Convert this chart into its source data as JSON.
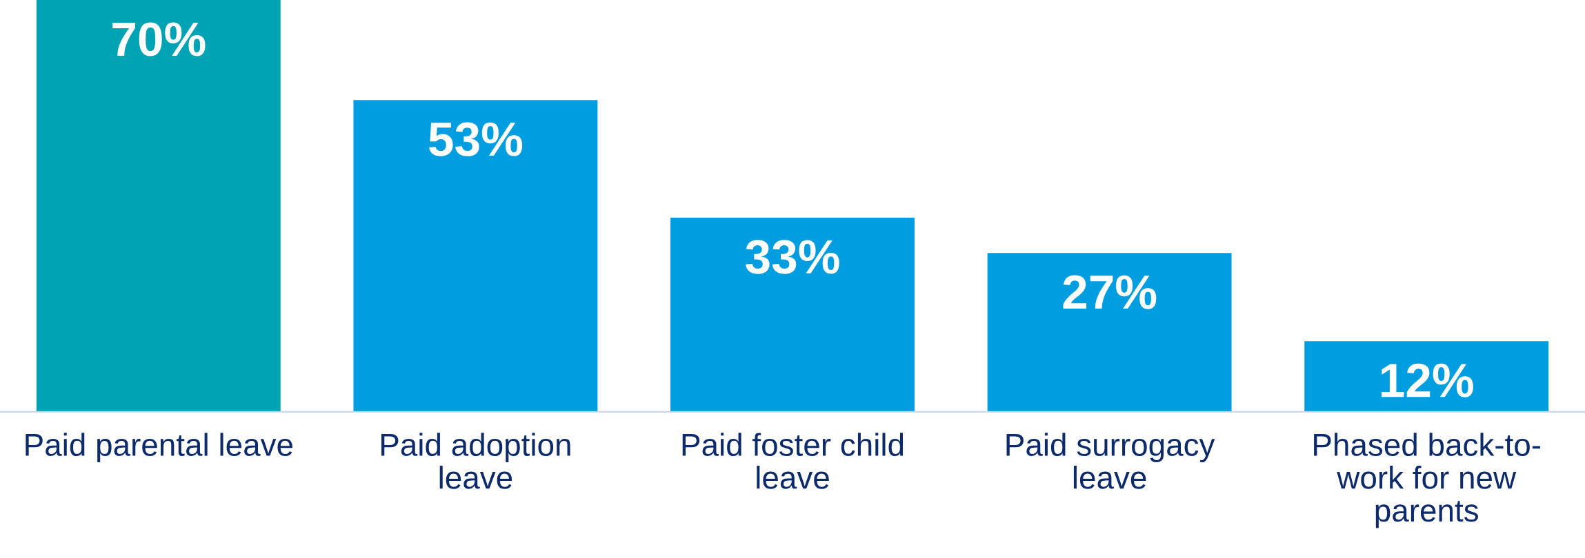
{
  "chart_data": {
    "type": "bar",
    "categories": [
      "Paid parental leave",
      "Paid adoption\nleave",
      "Paid foster child\nleave",
      "Paid surrogacy\nleave",
      "Phased back-to-\nwork for new\nparents"
    ],
    "values": [
      70,
      53,
      33,
      27,
      12
    ],
    "colors": [
      "#00a3b4",
      "#009ee0",
      "#009ee0",
      "#009ee0",
      "#009ee0"
    ],
    "value_labels": [
      "70%",
      "53%",
      "33%",
      "27%",
      "12%"
    ],
    "grid": false,
    "legend": false
  }
}
